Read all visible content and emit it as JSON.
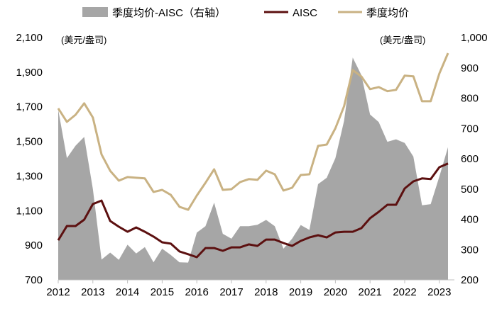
{
  "chart_data": {
    "type": "line+area",
    "legend": {
      "placement": "top",
      "entries": [
        "季度均价-AISC（右轴）",
        "AISC",
        "季度均价"
      ]
    },
    "left_unit": "(美元/盎司)",
    "right_unit": "(美元/盎司)",
    "left_axis": {
      "range": [
        700,
        2100
      ],
      "ticks": [
        "700",
        "900",
        "1,100",
        "1,300",
        "1,500",
        "1,700",
        "1,900",
        "2,100"
      ]
    },
    "right_axis": {
      "range": [
        200,
        1000
      ],
      "ticks": [
        "200",
        "300",
        "400",
        "500",
        "600",
        "700",
        "800",
        "900",
        "1,000"
      ]
    },
    "x_ticks": [
      "2012",
      "2013",
      "2014",
      "2015",
      "2016",
      "2017",
      "2018",
      "2019",
      "2020",
      "2021",
      "2022",
      "2023"
    ],
    "x_start": "2012Q1",
    "grid": false,
    "colors": {
      "spread": "#a6a6a6",
      "aisc": "#5c1010",
      "price": "#c9b283"
    },
    "series": [
      {
        "name": "季度均价-AISC（右轴）",
        "axis": "right",
        "kind": "area",
        "values": [
          762,
          602,
          643,
          672,
          500,
          267,
          290,
          266,
          316,
          287,
          308,
          258,
          303,
          282,
          258,
          257,
          356,
          377,
          455,
          352,
          336,
          377,
          377,
          382,
          398,
          377,
          303,
          336,
          381,
          365,
          516,
          537,
          602,
          725,
          934,
          876,
          746,
          721,
          656,
          664,
          652,
          607,
          446,
          450,
          541,
          638
        ]
      },
      {
        "name": "AISC",
        "axis": "left",
        "kind": "line",
        "values": [
          929,
          1011,
          1011,
          1048,
          1138,
          1158,
          1040,
          1007,
          978,
          1003,
          978,
          950,
          917,
          909,
          864,
          848,
          831,
          884,
          884,
          868,
          888,
          888,
          905,
          896,
          933,
          933,
          913,
          896,
          925,
          945,
          958,
          945,
          974,
          978,
          978,
          999,
          1056,
          1093,
          1134,
          1134,
          1228,
          1269,
          1286,
          1282,
          1351,
          1372
        ]
      },
      {
        "name": "季度均价",
        "axis": "left",
        "kind": "line",
        "values": [
          1691,
          1613,
          1654,
          1720,
          1638,
          1425,
          1330,
          1273,
          1294,
          1290,
          1286,
          1208,
          1220,
          1191,
          1122,
          1105,
          1187,
          1261,
          1339,
          1220,
          1224,
          1265,
          1282,
          1278,
          1331,
          1310,
          1216,
          1232,
          1306,
          1310,
          1474,
          1482,
          1576,
          1703,
          1912,
          1875,
          1802,
          1814,
          1790,
          1798,
          1880,
          1876,
          1732,
          1732,
          1892,
          2010
        ]
      }
    ]
  }
}
